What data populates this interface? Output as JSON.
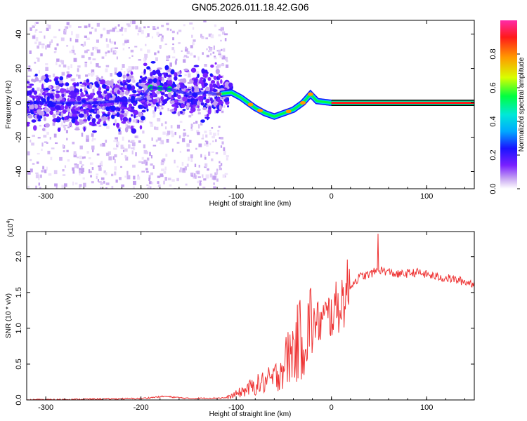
{
  "title": "GN05.2026.011.18.42.G06",
  "chart_data": [
    {
      "type": "heatmap",
      "name": "spectrogram",
      "xlabel": "Height of straight line (km)",
      "ylabel": "Frequency (Hz)",
      "xlim": [
        -320,
        150
      ],
      "ylim": [
        -50,
        48
      ],
      "x_ticks": [
        -300,
        -200,
        -100,
        0,
        100
      ],
      "y_ticks": [
        40,
        20,
        0,
        -20,
        -40
      ],
      "ridge": [
        {
          "x": -320,
          "y": 0
        },
        {
          "x": -250,
          "y": 0
        },
        {
          "x": -200,
          "y": 2
        },
        {
          "x": -190,
          "y": 9
        },
        {
          "x": -170,
          "y": 8
        },
        {
          "x": -150,
          "y": 5
        },
        {
          "x": -130,
          "y": 6
        },
        {
          "x": -120,
          "y": 5
        },
        {
          "x": -105,
          "y": 6
        },
        {
          "x": -95,
          "y": 3
        },
        {
          "x": -80,
          "y": -3
        },
        {
          "x": -70,
          "y": -6
        },
        {
          "x": -60,
          "y": -8
        },
        {
          "x": -50,
          "y": -6
        },
        {
          "x": -40,
          "y": -4
        },
        {
          "x": -30,
          "y": 0
        },
        {
          "x": -22,
          "y": 5
        },
        {
          "x": -15,
          "y": 1
        },
        {
          "x": 0,
          "y": 0
        },
        {
          "x": 150,
          "y": 0
        }
      ],
      "colorbar": {
        "label": "Normalized spectral amplitude",
        "ticks": [
          "0.0",
          "0.2",
          "0.4",
          "0.6",
          "0.8"
        ],
        "range": [
          0.0,
          1.0
        ],
        "colors": [
          "#ffffff",
          "#c7a6f2",
          "#7a20ff",
          "#1a14ff",
          "#00a8ff",
          "#00e8d8",
          "#00ff40",
          "#d8ff00",
          "#ff9a00",
          "#ff1a1a",
          "#ff2aa8"
        ]
      }
    },
    {
      "type": "line",
      "name": "snr",
      "xlabel": "Height of straight line (km)",
      "ylabel": "SNR (10 * v/v)",
      "scale_label": "(x10",
      "scale_exp": "4",
      "scale_close": ")",
      "xlim": [
        -320,
        150
      ],
      "ylim": [
        0,
        2.35
      ],
      "x_ticks": [
        -300,
        -200,
        -100,
        0,
        100
      ],
      "y_ticks": [
        "0.0",
        "0.5",
        "1.0",
        "1.5",
        "2.0"
      ],
      "color": "#ee3333",
      "envelope": [
        {
          "x": -320,
          "y": 0.0
        },
        {
          "x": -200,
          "y": 0.02
        },
        {
          "x": -175,
          "y": 0.05
        },
        {
          "x": -150,
          "y": 0.02
        },
        {
          "x": -110,
          "y": 0.03
        },
        {
          "x": -100,
          "y": 0.08
        },
        {
          "x": -80,
          "y": 0.2
        },
        {
          "x": -60,
          "y": 0.3
        },
        {
          "x": -45,
          "y": 0.6
        },
        {
          "x": -30,
          "y": 0.9
        },
        {
          "x": -20,
          "y": 1.05
        },
        {
          "x": -10,
          "y": 1.1
        },
        {
          "x": 0,
          "y": 1.2
        },
        {
          "x": 10,
          "y": 1.35
        },
        {
          "x": 20,
          "y": 1.6
        },
        {
          "x": 30,
          "y": 1.72
        },
        {
          "x": 40,
          "y": 1.75
        },
        {
          "x": 50,
          "y": 1.82
        },
        {
          "x": 70,
          "y": 1.75
        },
        {
          "x": 90,
          "y": 1.78
        },
        {
          "x": 110,
          "y": 1.72
        },
        {
          "x": 130,
          "y": 1.68
        },
        {
          "x": 150,
          "y": 1.62
        }
      ],
      "peak": {
        "x": 49,
        "y": 2.32
      }
    }
  ]
}
